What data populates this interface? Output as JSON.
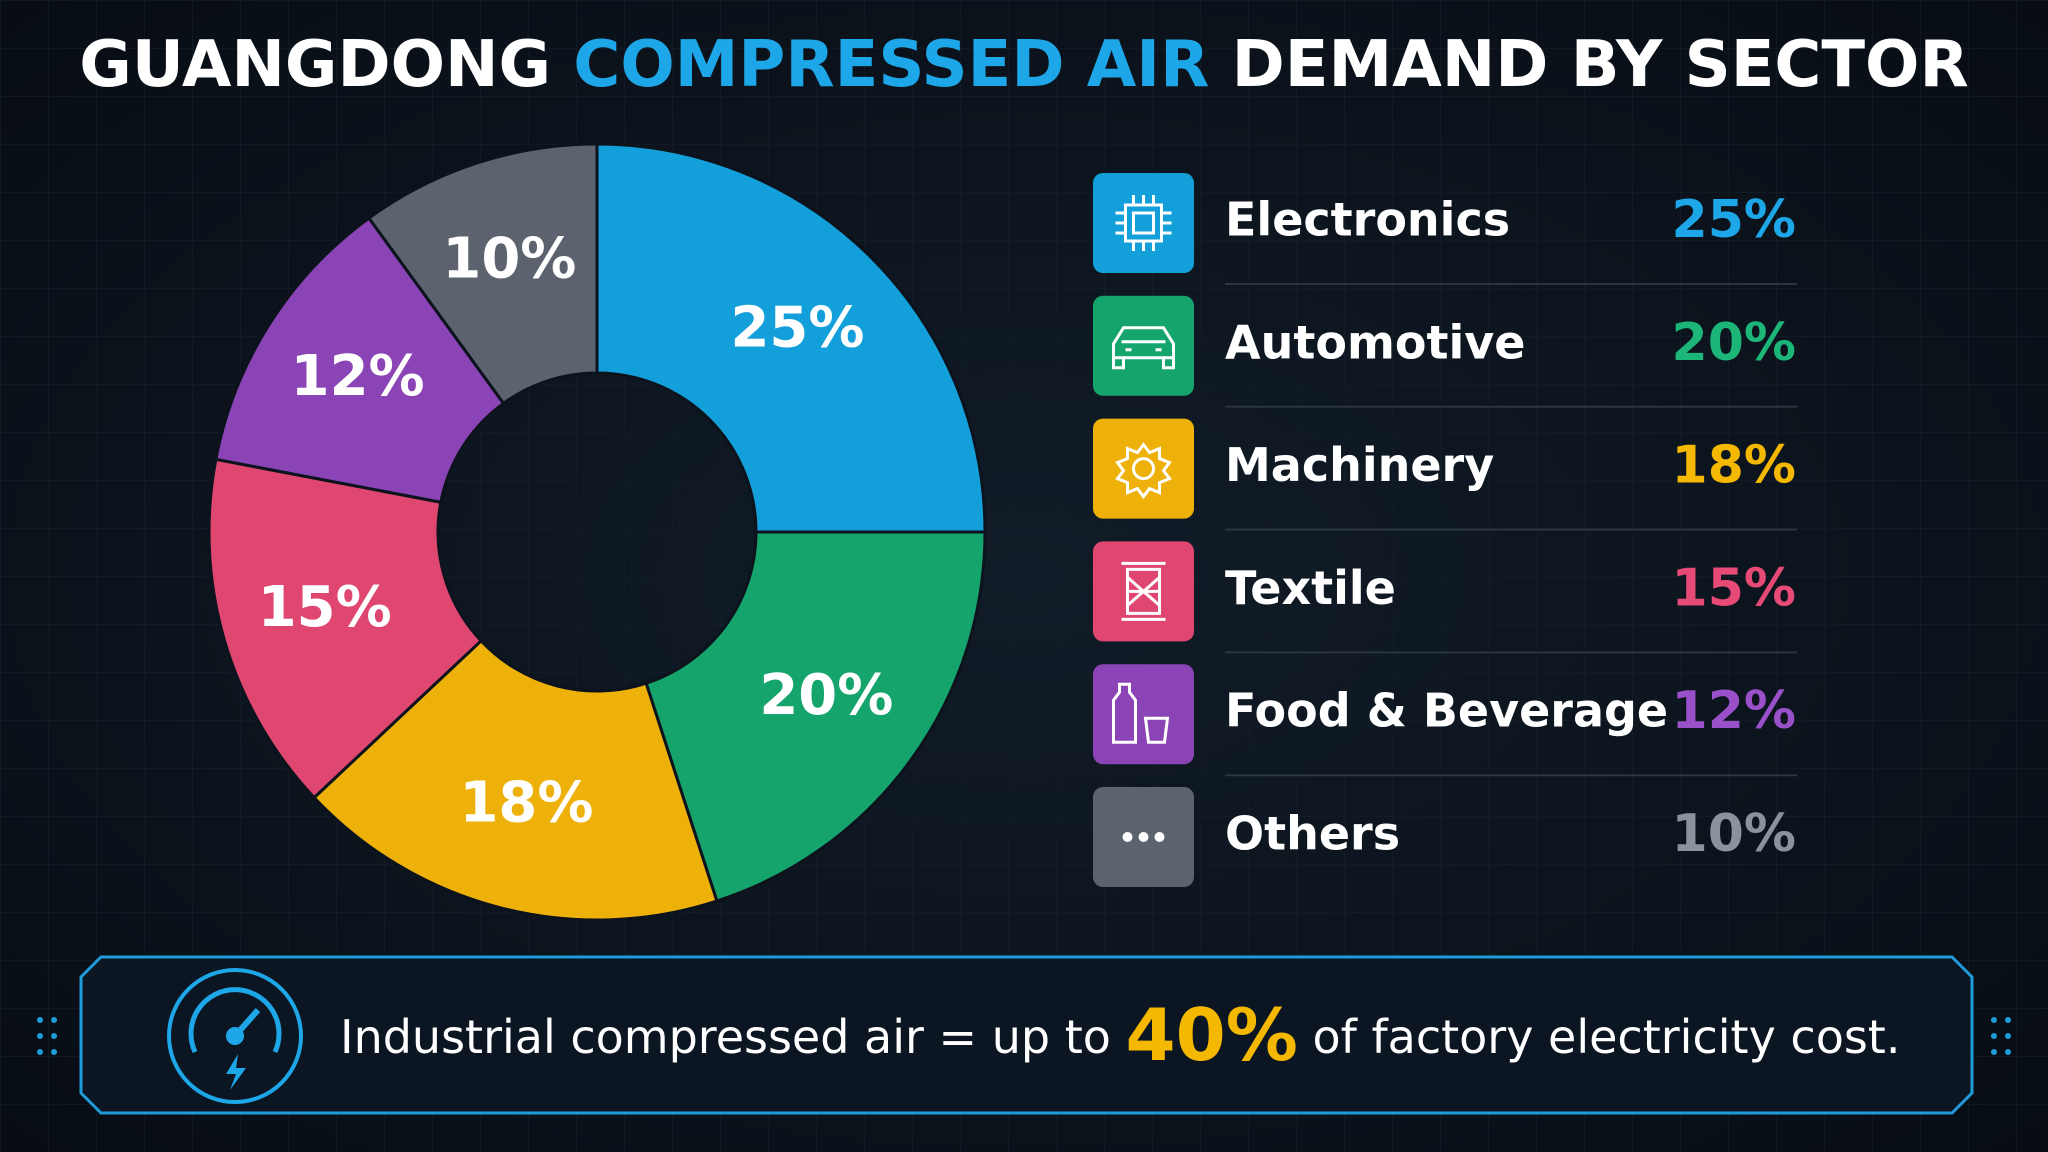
{
  "chart_data": {
    "type": "donut",
    "title": [
      "GUANGDONG",
      "COMPRESSED AIR",
      "DEMAND BY SECTOR"
    ],
    "title_colors": [
      "#ffffff",
      "#1ea7e8",
      "#ffffff"
    ],
    "categories": [
      "Electronics",
      "Automotive",
      "Machinery",
      "Textile",
      "Food & Beverage",
      "Others"
    ],
    "values": [
      25,
      20,
      18,
      15,
      12,
      10
    ],
    "value_labels": [
      "25%",
      "20%",
      "18%",
      "15%",
      "12%",
      "10%"
    ],
    "colors": [
      "#139fda",
      "#14a46c",
      "#eeb10a",
      "#df4670",
      "#8b44b6",
      "#5c636f"
    ],
    "label_colors": [
      "#1ea7e8",
      "#1cb678",
      "#f5b800",
      "#e84a78",
      "#9a50c8",
      "#8c929c"
    ]
  },
  "footnote": {
    "parts": [
      "Industrial compressed air = up to",
      "40%",
      "of factory electricity cost."
    ],
    "highlight_color": "#f5b800"
  }
}
